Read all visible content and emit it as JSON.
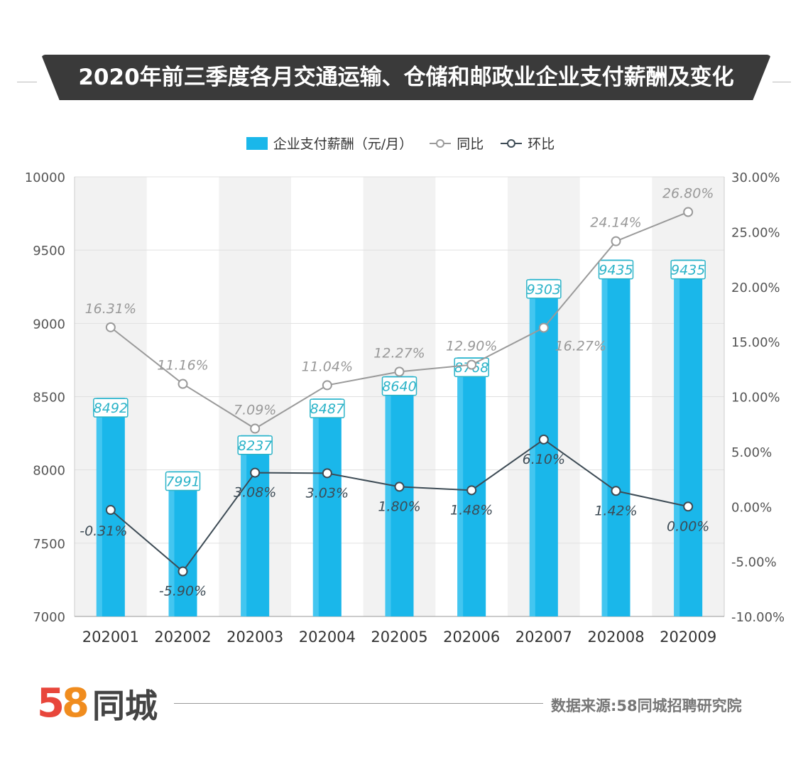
{
  "chart_data": {
    "type": "bar",
    "title": "2020年前三季度各月交通运输、仓储和邮政业企业支付薪酬及变化",
    "categories": [
      "202001",
      "202002",
      "202003",
      "202004",
      "202005",
      "202006",
      "202007",
      "202008",
      "202009"
    ],
    "series": [
      {
        "name": "企业支付薪酬（元/月）",
        "type": "bar",
        "axis": "left",
        "values": [
          8492,
          7991,
          8237,
          8487,
          8640,
          8768,
          9303,
          9435,
          9435
        ],
        "labels": [
          "8492",
          "7991",
          "8237",
          "8487",
          "8640",
          "8768",
          "9303",
          "9435",
          "9435"
        ]
      },
      {
        "name": "同比",
        "type": "line",
        "axis": "right",
        "values": [
          16.31,
          11.16,
          7.09,
          11.04,
          12.27,
          12.9,
          16.27,
          24.14,
          26.8
        ],
        "labels": [
          "16.31%",
          "11.16%",
          "7.09%",
          "11.04%",
          "12.27%",
          "12.90%",
          "16.27%",
          "24.14%",
          "26.80%"
        ]
      },
      {
        "name": "环比",
        "type": "line",
        "axis": "right",
        "values": [
          -0.31,
          -5.9,
          3.08,
          3.03,
          1.8,
          1.48,
          6.1,
          1.42,
          0.0
        ],
        "labels": [
          "-0.31%",
          "-5.90%",
          "3.08%",
          "3.03%",
          "1.80%",
          "1.48%",
          "6.10%",
          "1.42%",
          "0.00%"
        ]
      }
    ],
    "left_axis": {
      "ylim": [
        7000,
        10000
      ],
      "ticks": [
        "7000",
        "7500",
        "8000",
        "8500",
        "9000",
        "9500",
        "10000"
      ]
    },
    "right_axis": {
      "ylim": [
        -10,
        30
      ],
      "ticks": [
        "-10.00%",
        "-5.00%",
        "0.00%",
        "5.00%",
        "10.00%",
        "15.00%",
        "20.00%",
        "25.00%",
        "30.00%"
      ]
    },
    "legend_position": "top-center",
    "grid": true
  },
  "legend": {
    "bar": "企业支付薪酬（元/月）",
    "yoy": "同比",
    "mom": "环比"
  },
  "footer": {
    "logo": "58同城",
    "source": "数据来源:58同城招聘研究院"
  },
  "colors": {
    "bar": "#1ab7ea",
    "yoy": "#9a9a9a",
    "mom": "#3d4b55",
    "label": "#2bb3c8",
    "band": "#f2f2f2"
  }
}
